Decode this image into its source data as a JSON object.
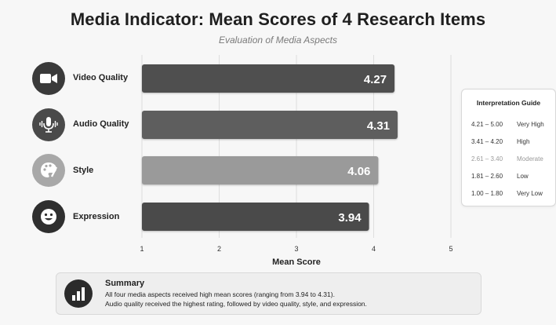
{
  "chart_data": {
    "type": "bar",
    "orientation": "horizontal",
    "title": "Media Indicator: Mean Scores of 4 Research Items",
    "subtitle": "Evaluation of Media Aspects",
    "xlabel": "Mean Score",
    "ylabel": "",
    "xlim": [
      1,
      5
    ],
    "xticks": [
      "1",
      "2",
      "3",
      "4",
      "5"
    ],
    "grid": true,
    "categories": [
      "Video Quality",
      "Audio Quality",
      "Style",
      "Expression"
    ],
    "values": [
      4.27,
      4.31,
      4.06,
      3.94
    ],
    "value_labels": [
      "4.27",
      "4.31",
      "4.06",
      "3.94"
    ],
    "bar_colors": [
      "#4f4f4f",
      "#5e5e5e",
      "#9a9a9a",
      "#4a4a4a"
    ],
    "icons": [
      "video-camera-icon",
      "microphone-icon",
      "palette-icon",
      "smiley-face-icon"
    ],
    "icon_colors": [
      "#3a3a3a",
      "#4a4a4a",
      "#a8a8a8",
      "#2f2f2f"
    ]
  },
  "guide": {
    "title": "Interpretation Guide",
    "rows": [
      {
        "range": "4.21 – 5.00",
        "label": "Very High",
        "color": "#333333"
      },
      {
        "range": "3.41 – 4.20",
        "label": "High",
        "color": "#333333"
      },
      {
        "range": "2.61 – 3.40",
        "label": "Moderate",
        "color": "#9a9a9a"
      },
      {
        "range": "1.81 – 2.60",
        "label": "Low",
        "color": "#333333"
      },
      {
        "range": "1.00 – 1.80",
        "label": "Very Low",
        "color": "#333333"
      }
    ]
  },
  "summary": {
    "icon": "bar-chart-icon",
    "title": "Summary",
    "line1": "All four media aspects received high mean scores (ranging from 3.94 to 4.31).",
    "line2": "Audio quality received the highest rating, followed by video quality, style, and expression."
  }
}
